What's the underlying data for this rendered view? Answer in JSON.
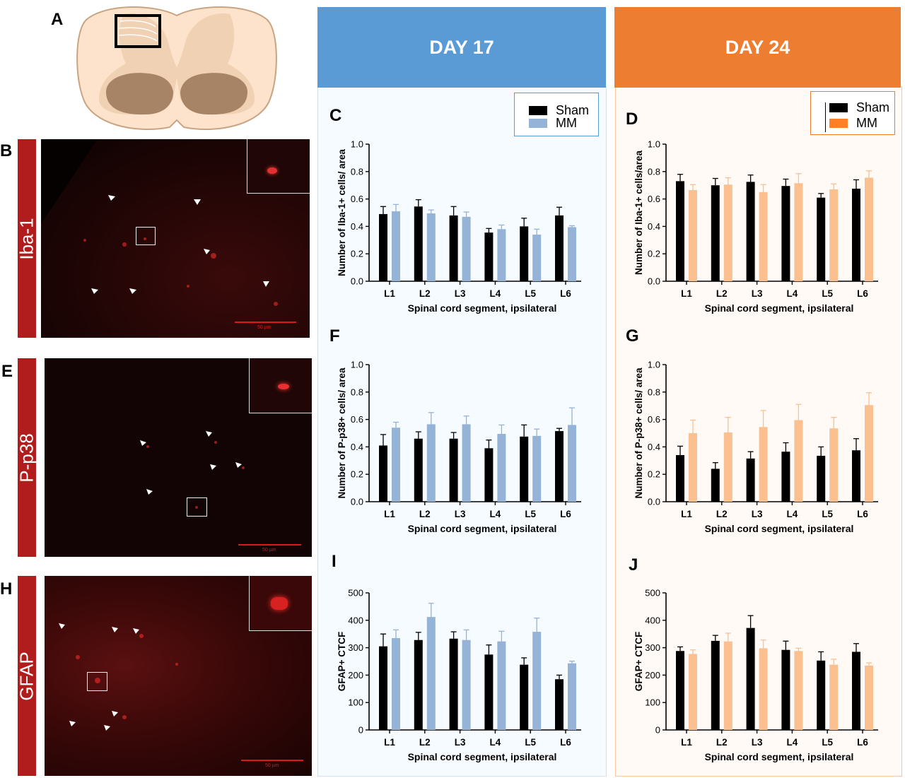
{
  "panel_letters": {
    "A": "A",
    "B": "B",
    "C": "C",
    "D": "D",
    "E": "E",
    "F": "F",
    "G": "G",
    "H": "H",
    "I": "I",
    "J": "J"
  },
  "columns": {
    "day17": {
      "label": "DAY 17",
      "color": "#5b9bd5"
    },
    "day24": {
      "label": "DAY 24",
      "color": "#ed7d31"
    }
  },
  "micrographs": [
    {
      "label": "Iba-1",
      "scale_text": "50 µm"
    },
    {
      "label": "P-p38",
      "scale_text": "50 µm"
    },
    {
      "label": "GFAP",
      "scale_text": "50 µm"
    }
  ],
  "legends": {
    "day17": {
      "sham": "Sham",
      "mm": "MM",
      "sham_color": "#000000",
      "mm_color": "#95b3d7"
    },
    "day24": {
      "sham": "Sham",
      "mm": "MM",
      "sham_color": "#000000",
      "mm_color": "#ff7f27"
    }
  },
  "chart_data": [
    {
      "panel": "C",
      "type": "bar",
      "categories": [
        "L1",
        "L2",
        "L3",
        "L4",
        "L5",
        "L6"
      ],
      "xlabel": "Spinal cord segment, ipsilateral",
      "ylabel": "Number of Iba-1+ cells/ area",
      "ylim": [
        0,
        1.0
      ],
      "yticks": [
        "0.0",
        "0.2",
        "0.4",
        "0.6",
        "0.8",
        "1.0"
      ],
      "series": [
        {
          "name": "Sham",
          "color": "#000000",
          "values": [
            0.49,
            0.545,
            0.48,
            0.355,
            0.4,
            0.48
          ],
          "errors": [
            0.055,
            0.05,
            0.065,
            0.03,
            0.06,
            0.06
          ]
        },
        {
          "name": "MM",
          "color": "#95b3d7",
          "values": [
            0.51,
            0.495,
            0.47,
            0.38,
            0.34,
            0.395
          ],
          "errors": [
            0.05,
            0.025,
            0.035,
            0.03,
            0.04,
            0.01
          ]
        }
      ]
    },
    {
      "panel": "D",
      "type": "bar",
      "categories": [
        "L1",
        "L2",
        "L3",
        "L4",
        "L5",
        "L6"
      ],
      "xlabel": "Spinal cord segment, ipsilateral",
      "ylabel": "Number of Iba-1+ cells/area",
      "ylim": [
        0,
        1.0
      ],
      "yticks": [
        "0.0",
        "0.2",
        "0.4",
        "0.6",
        "0.8",
        "1.0"
      ],
      "series": [
        {
          "name": "Sham",
          "color": "#000000",
          "values": [
            0.73,
            0.7,
            0.725,
            0.695,
            0.61,
            0.675
          ],
          "errors": [
            0.05,
            0.05,
            0.05,
            0.05,
            0.03,
            0.065
          ]
        },
        {
          "name": "MM",
          "color": "#fac090",
          "values": [
            0.665,
            0.705,
            0.65,
            0.715,
            0.67,
            0.755
          ],
          "errors": [
            0.04,
            0.05,
            0.055,
            0.07,
            0.04,
            0.05
          ]
        }
      ]
    },
    {
      "panel": "F",
      "type": "bar",
      "categories": [
        "L1",
        "L2",
        "L3",
        "L4",
        "L5",
        "L6"
      ],
      "xlabel": "Spinal cord segment, ipsilateral",
      "ylabel": "Number of P-p38+ cells/ area",
      "ylim": [
        0,
        1.0
      ],
      "yticks": [
        "0.0",
        "0.2",
        "0.4",
        "0.6",
        "0.8",
        "1.0"
      ],
      "series": [
        {
          "name": "Sham",
          "color": "#000000",
          "values": [
            0.41,
            0.46,
            0.46,
            0.39,
            0.475,
            0.515
          ],
          "errors": [
            0.08,
            0.05,
            0.045,
            0.06,
            0.085,
            0.02
          ]
        },
        {
          "name": "MM",
          "color": "#95b3d7",
          "values": [
            0.54,
            0.565,
            0.565,
            0.495,
            0.48,
            0.56
          ],
          "errors": [
            0.04,
            0.085,
            0.06,
            0.065,
            0.05,
            0.125
          ]
        }
      ]
    },
    {
      "panel": "G",
      "type": "bar",
      "categories": [
        "L1",
        "L2",
        "L3",
        "L4",
        "L5",
        "L6"
      ],
      "xlabel": "Spinal cord segment, ipsilateral",
      "ylabel": "Number of P-p38+ cells/ area",
      "ylim": [
        0,
        1.0
      ],
      "yticks": [
        "0.0",
        "0.2",
        "0.4",
        "0.6",
        "0.8",
        "1.0"
      ],
      "series": [
        {
          "name": "Sham",
          "color": "#000000",
          "values": [
            0.34,
            0.24,
            0.315,
            0.365,
            0.335,
            0.375
          ],
          "errors": [
            0.065,
            0.045,
            0.05,
            0.065,
            0.065,
            0.085
          ]
        },
        {
          "name": "MM",
          "color": "#fac090",
          "values": [
            0.5,
            0.505,
            0.545,
            0.595,
            0.535,
            0.705
          ],
          "errors": [
            0.095,
            0.11,
            0.12,
            0.115,
            0.08,
            0.09
          ]
        }
      ]
    },
    {
      "panel": "I",
      "type": "bar",
      "categories": [
        "L1",
        "L2",
        "L3",
        "L4",
        "L5",
        "L6"
      ],
      "xlabel": "Spinal cord segment, ipsilateral",
      "ylabel": "GFAP+ CTCF",
      "ylim": [
        0,
        500
      ],
      "yticks": [
        "0",
        "100",
        "200",
        "300",
        "400",
        "500"
      ],
      "series": [
        {
          "name": "Sham",
          "color": "#000000",
          "values": [
            305,
            328,
            333,
            275,
            238,
            185
          ],
          "errors": [
            45,
            28,
            25,
            35,
            25,
            15
          ]
        },
        {
          "name": "MM",
          "color": "#95b3d7",
          "values": [
            335,
            412,
            328,
            323,
            358,
            243
          ],
          "errors": [
            30,
            50,
            37,
            37,
            50,
            8
          ]
        }
      ]
    },
    {
      "panel": "J",
      "type": "bar",
      "categories": [
        "L1",
        "L2",
        "L3",
        "L4",
        "L5",
        "L6"
      ],
      "xlabel": "Spinal cord segment, ipsilateral",
      "ylabel": "GFAP+ CTCF",
      "ylim": [
        0,
        500
      ],
      "yticks": [
        "0",
        "100",
        "200",
        "300",
        "400",
        "500"
      ],
      "series": [
        {
          "name": "Sham",
          "color": "#000000",
          "values": [
            288,
            325,
            372,
            292,
            253,
            285
          ],
          "errors": [
            15,
            20,
            45,
            32,
            32,
            30
          ]
        },
        {
          "name": "MM",
          "color": "#fac090",
          "values": [
            277,
            323,
            298,
            288,
            238,
            235
          ],
          "errors": [
            15,
            30,
            30,
            10,
            20,
            10
          ]
        }
      ]
    }
  ]
}
